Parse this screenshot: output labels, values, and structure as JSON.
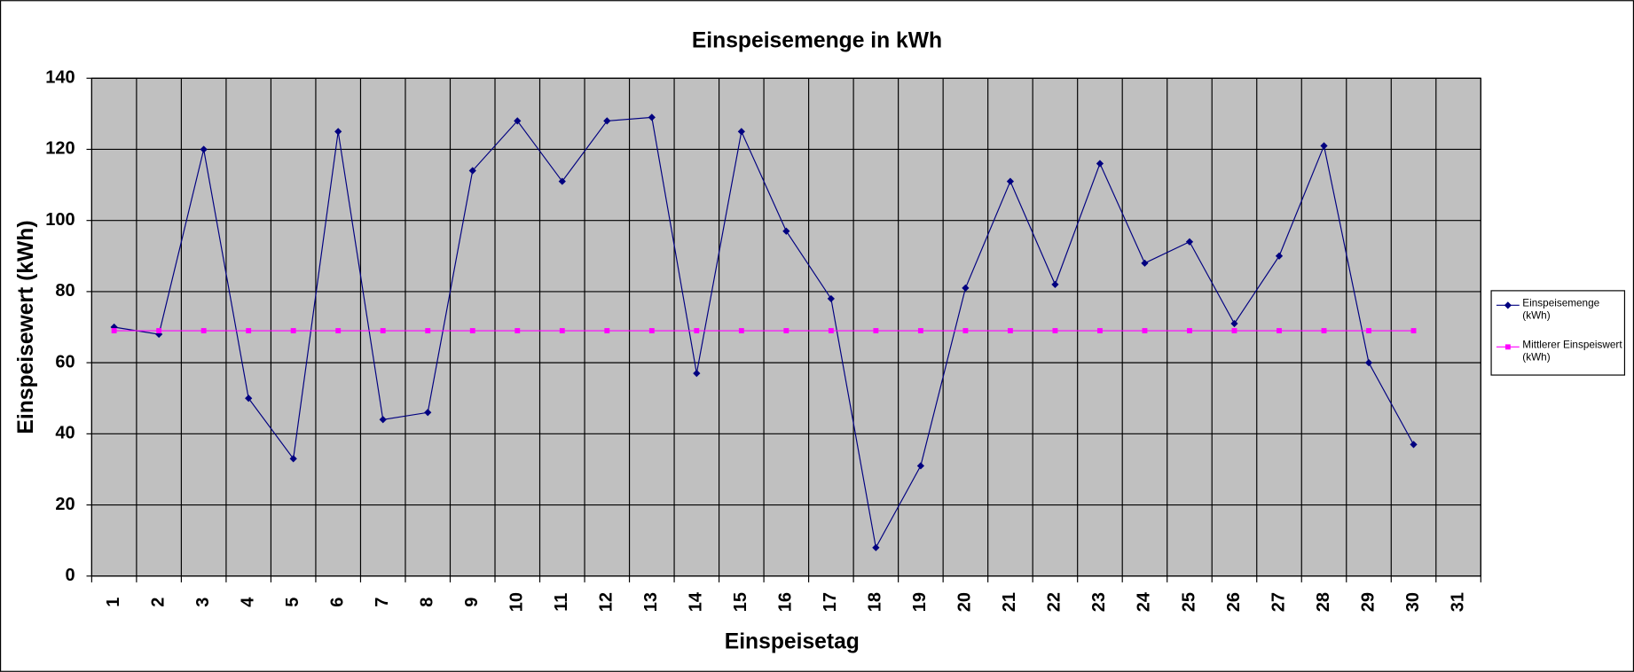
{
  "chart_data": {
    "type": "line",
    "title": "Einspeisemenge in kWh",
    "x_label": "Einspeisetag",
    "y_label": "Einspeisewert  (kWh)",
    "categories": [
      "1",
      "2",
      "3",
      "4",
      "5",
      "6",
      "7",
      "8",
      "9",
      "10",
      "11",
      "12",
      "13",
      "14",
      "15",
      "16",
      "17",
      "18",
      "19",
      "20",
      "21",
      "22",
      "23",
      "24",
      "25",
      "26",
      "27",
      "28",
      "29",
      "30",
      "31"
    ],
    "series": [
      {
        "name": "Einspeisemenge (kWh)",
        "color": "#000080",
        "marker": "diamond",
        "values": [
          70,
          68,
          120,
          50,
          33,
          125,
          44,
          46,
          114,
          128,
          111,
          128,
          129,
          57,
          125,
          97,
          78,
          8,
          31,
          81,
          111,
          82,
          116,
          88,
          94,
          71,
          90,
          121,
          60,
          37,
          null
        ]
      },
      {
        "name": "Mittlerer Einspeiswert (kWh)",
        "color": "#ff00ff",
        "marker": "square",
        "values": [
          69,
          69,
          69,
          69,
          69,
          69,
          69,
          69,
          69,
          69,
          69,
          69,
          69,
          69,
          69,
          69,
          69,
          69,
          69,
          69,
          69,
          69,
          69,
          69,
          69,
          69,
          69,
          69,
          69,
          69,
          null
        ]
      }
    ],
    "ylim": [
      0,
      140
    ],
    "yticks": [
      0,
      20,
      40,
      60,
      80,
      100,
      120,
      140
    ],
    "grid": true,
    "legend": "right"
  }
}
